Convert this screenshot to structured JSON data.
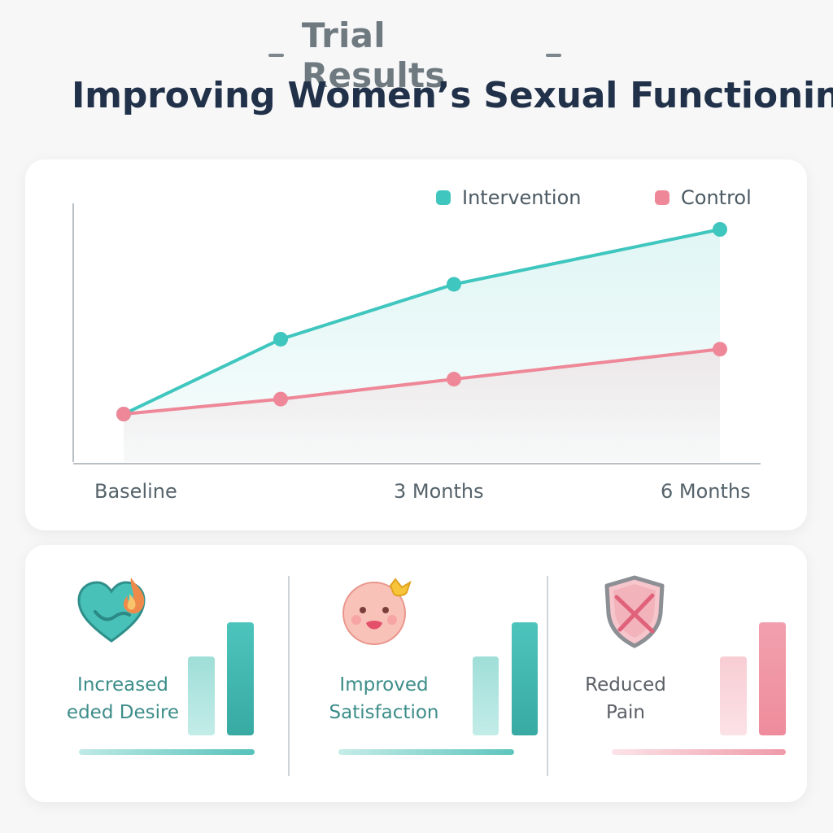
{
  "header": {
    "eyebrow": "Trial Results",
    "title": "Improving Women’s Sexual Functioning"
  },
  "chart_data": {
    "type": "line",
    "title": "",
    "xlabel": "",
    "ylabel": "",
    "categories": [
      "Baseline",
      "",
      "3 Months",
      "6 Months"
    ],
    "x_labels_shown": [
      "Baseline",
      "3 Months",
      "6 Months"
    ],
    "series": [
      {
        "name": "Intervention",
        "color": "#3fc6be",
        "values": [
          1.0,
          2.5,
          3.6,
          4.7
        ]
      },
      {
        "name": "Control",
        "color": "#ee8898",
        "values": [
          1.0,
          1.3,
          1.7,
          2.3
        ]
      }
    ],
    "ylim": [
      0,
      5
    ],
    "grid": false,
    "area_fill": true,
    "legend_position": "top-right"
  },
  "legend": {
    "intervention": "Intervention",
    "control": "Control"
  },
  "x_ticks": {
    "baseline": "Baseline",
    "three_months": "3 Months",
    "six_months": "6 Months"
  },
  "stats": [
    {
      "line1": "Increased",
      "line2": "eded Desire",
      "icon": "heart-flame-icon",
      "color": "#3bbab3",
      "bars": [
        0.7,
        1.0
      ]
    },
    {
      "line1": "Improved",
      "line2": "Satisfaction",
      "icon": "smiling-face-icon",
      "color": "#3bbab3",
      "bars": [
        0.7,
        1.0
      ]
    },
    {
      "line1": "Reduced",
      "line2": "Pain",
      "icon": "crossed-shield-icon",
      "color": "#ec8595",
      "bars": [
        0.7,
        1.0
      ]
    }
  ]
}
